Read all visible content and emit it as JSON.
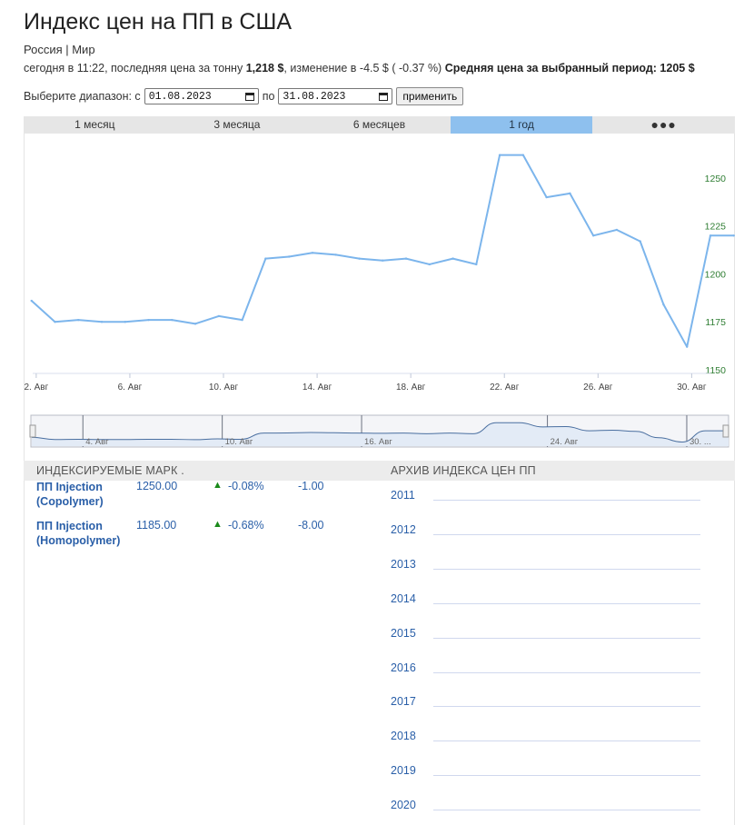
{
  "header": {
    "title": "Индекс цен на ПП в США",
    "region": "Россия | Мир"
  },
  "summary": {
    "prefix": "сегодня в 11:22, последняя цена за тонну",
    "last_price": "1,218 $",
    "change_text": ", изменение в -4.5 $ ( -0.37 %)",
    "avg_label": "Средняя цена за выбранный период: 1205 $"
  },
  "range": {
    "label_from": "Выберите диапазон: с",
    "from_value": "01.08.2023",
    "label_to": "по",
    "to_value": "31.08.2023",
    "apply_label": "применить"
  },
  "tabs": [
    {
      "label": "1 месяц",
      "active": false
    },
    {
      "label": "3 месяца",
      "active": false
    },
    {
      "label": "6 месяцев",
      "active": false
    },
    {
      "label": "1 год",
      "active": true
    },
    {
      "label": "●●●",
      "active": false
    }
  ],
  "chart_data": {
    "type": "line",
    "title": "",
    "xlabel": "",
    "ylabel": "",
    "x_ticks": [
      "2. Авг",
      "6. Авг",
      "10. Авг",
      "14. Авг",
      "18. Авг",
      "22. Авг",
      "26. Авг",
      "30. Авг"
    ],
    "y_ticks": [
      1150,
      1175,
      1200,
      1225,
      1250
    ],
    "ylim": [
      1150,
      1259
    ],
    "xlim": [
      1.85,
      30.8
    ],
    "grid": false,
    "y_axis_side": "right",
    "line_color": "#7cb5ec",
    "series": [
      {
        "name": "",
        "x": [
          1.8,
          2.8,
          3.8,
          4.8,
          5.8,
          6.8,
          7.8,
          8.8,
          9.8,
          10.8,
          11.8,
          12.8,
          13.8,
          14.8,
          15.8,
          16.8,
          17.8,
          18.8,
          19.8,
          20.8,
          21.8,
          22.8,
          23.8,
          24.8,
          25.8,
          26.8,
          27.8,
          28.8,
          29.8,
          30.8,
          31.8
        ],
        "values": [
          1186,
          1175,
          1176,
          1175,
          1175,
          1176,
          1176,
          1174,
          1178,
          1176,
          1208,
          1209,
          1211,
          1210,
          1208,
          1207,
          1208,
          1205,
          1208,
          1205,
          1262,
          1262,
          1240,
          1242,
          1220,
          1223,
          1217,
          1184,
          1162,
          1220,
          1220
        ]
      }
    ]
  },
  "navigator": {
    "tick_labels": [
      "4. Авг",
      "10. Авг",
      "16. Авг",
      "24. Авг",
      "30. ..."
    ]
  },
  "indices": {
    "title": "ИНДЕКСИРУЕМЫЕ МАРК .",
    "items": [
      {
        "name": "ПП Injection (Copolymer)",
        "price": "1250.00",
        "arrow": "▲",
        "pct": "-0.08%",
        "abs": "-1.00"
      },
      {
        "name": "ПП Injection (Homopolymer)",
        "price": "1185.00",
        "arrow": "▲",
        "pct": "-0.68%",
        "abs": "-8.00"
      }
    ]
  },
  "archive": {
    "title": "АРХИВ ИНДЕКСА ЦЕН ПП",
    "years": [
      "2011",
      "2012",
      "2013",
      "2014",
      "2015",
      "2016",
      "2017",
      "2018",
      "2019",
      "2020"
    ]
  },
  "colors": {
    "accent_tab": "#8ec0ee",
    "line": "#7cb5ec",
    "link": "#2a5fa8",
    "up_arrow": "#1a8a1a",
    "y_tick": "#2e7d32"
  }
}
